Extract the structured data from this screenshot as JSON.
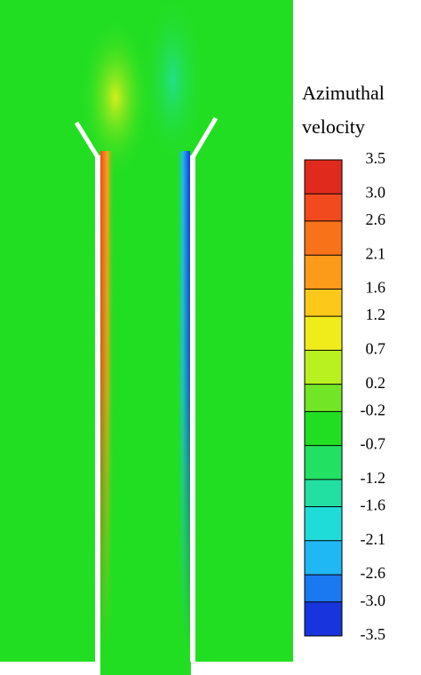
{
  "chart_data": {
    "type": "contour",
    "colorbar_title": [
      "Azimuthal",
      "velocity"
    ],
    "zlim": [
      -3.5,
      3.5
    ],
    "zticks": [
      3.5,
      {
        "value": 3,
        "label": "3.0"
      },
      2.6,
      2.1,
      1.6,
      1.2,
      0.7,
      0.2,
      -0.2,
      -0.7,
      -1.2,
      -1.6,
      -2.1,
      -2.6,
      {
        "value": -3,
        "label": "-3.0"
      },
      -3.5
    ],
    "colors": [
      "#e02a1e",
      "#f04a1e",
      "#f8721a",
      "#fc9a1a",
      "#fcc81a",
      "#f0ec1c",
      "#b8f020",
      "#72e626",
      "#22de22",
      "#22e062",
      "#22e0a2",
      "#20dcd8",
      "#20b8f4",
      "#1a78f0",
      "#1834dc"
    ]
  }
}
